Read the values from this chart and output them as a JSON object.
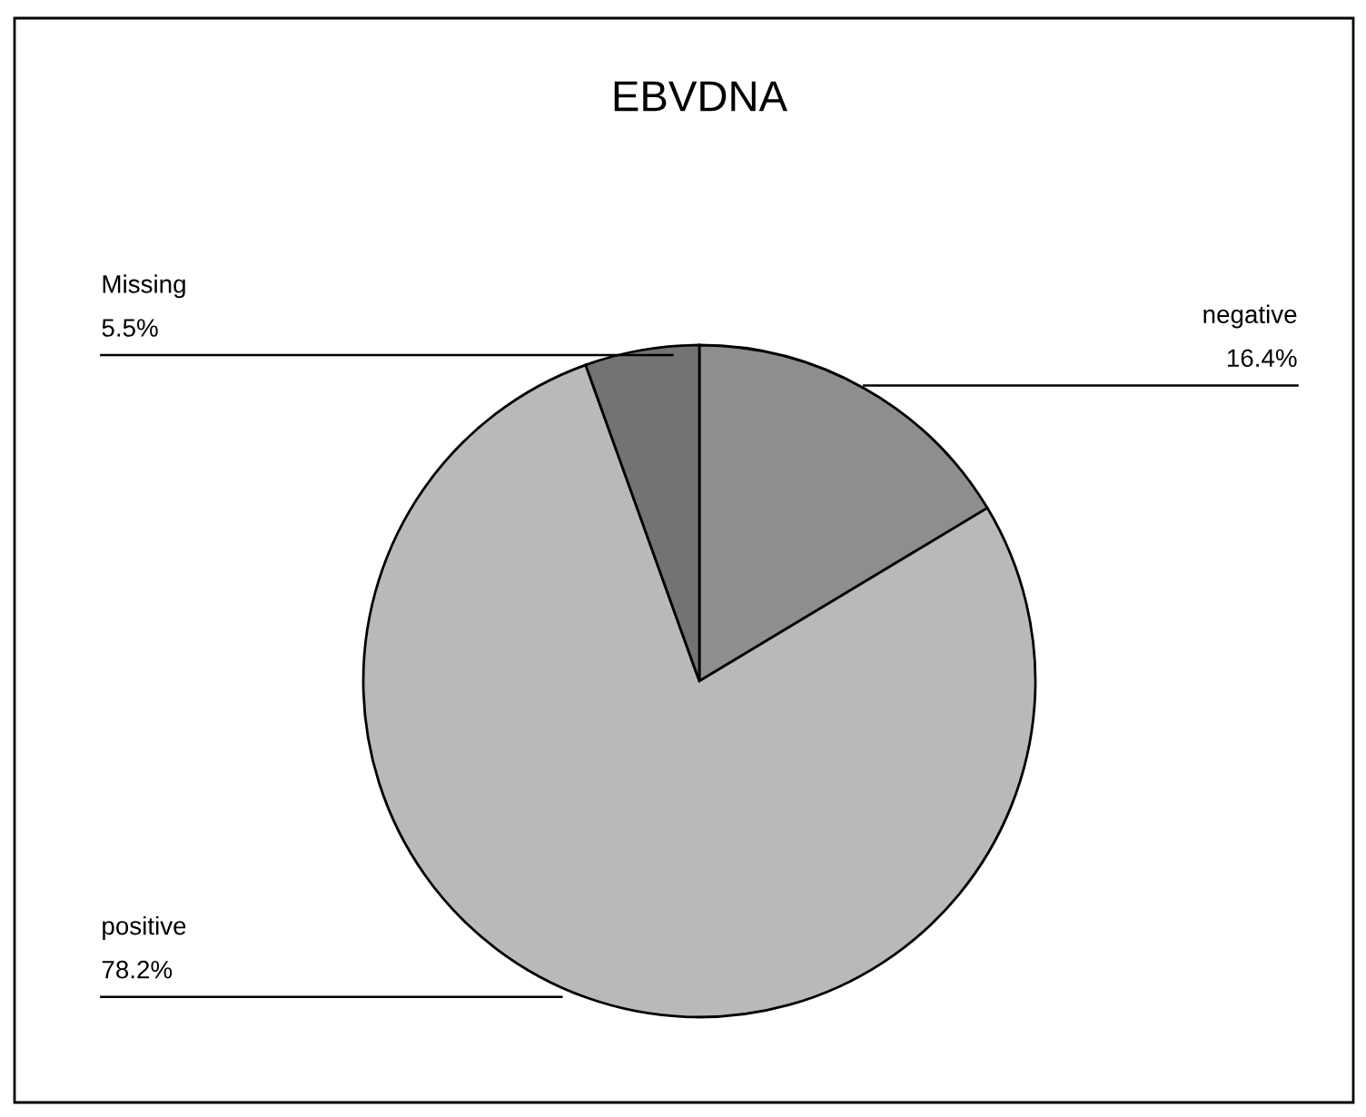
{
  "chart_data": {
    "type": "pie",
    "title": "EBVDNA",
    "categories": [
      "negative",
      "positive",
      "Missing"
    ],
    "values": [
      16.4,
      78.2,
      5.5
    ],
    "colors": [
      "#8e8e8e",
      "#b9b9b9",
      "#737373"
    ],
    "value_labels": [
      "16.4%",
      "78.2%",
      "5.5%"
    ]
  }
}
